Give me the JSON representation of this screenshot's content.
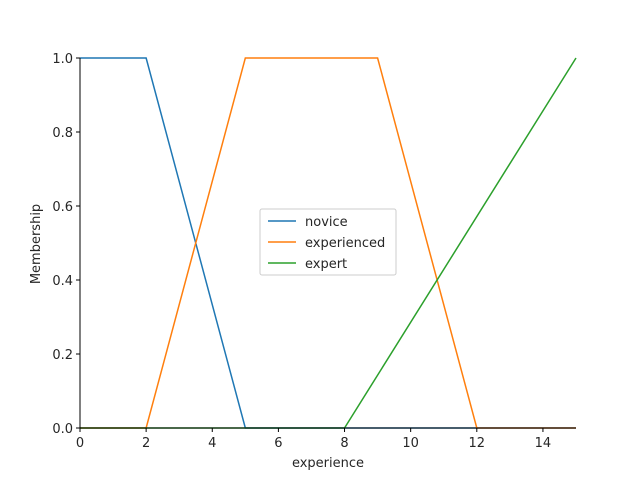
{
  "chart_data": {
    "type": "line",
    "title": "",
    "xlabel": "experience",
    "ylabel": "Membership",
    "xlim": [
      0,
      15
    ],
    "ylim": [
      0,
      1
    ],
    "xticks": [
      0,
      2,
      4,
      6,
      8,
      10,
      12,
      14
    ],
    "yticks": [
      0.0,
      0.2,
      0.4,
      0.6,
      0.8,
      1.0
    ],
    "xtick_labels": [
      "0",
      "2",
      "4",
      "6",
      "8",
      "10",
      "12",
      "14"
    ],
    "ytick_labels": [
      "0.0",
      "0.2",
      "0.4",
      "0.6",
      "0.8",
      "1.0"
    ],
    "grid": false,
    "legend_position": "center",
    "series": [
      {
        "name": "novice",
        "color": "#1f77b4",
        "x": [
          0,
          2,
          5,
          15
        ],
        "y": [
          1,
          1,
          0,
          0
        ]
      },
      {
        "name": "experienced",
        "color": "#ff7f0e",
        "x": [
          0,
          2,
          5,
          9,
          12,
          15
        ],
        "y": [
          0,
          0,
          1,
          1,
          0,
          0
        ]
      },
      {
        "name": "expert",
        "color": "#2ca02c",
        "x": [
          0,
          8,
          15
        ],
        "y": [
          0,
          0,
          1
        ]
      }
    ]
  }
}
